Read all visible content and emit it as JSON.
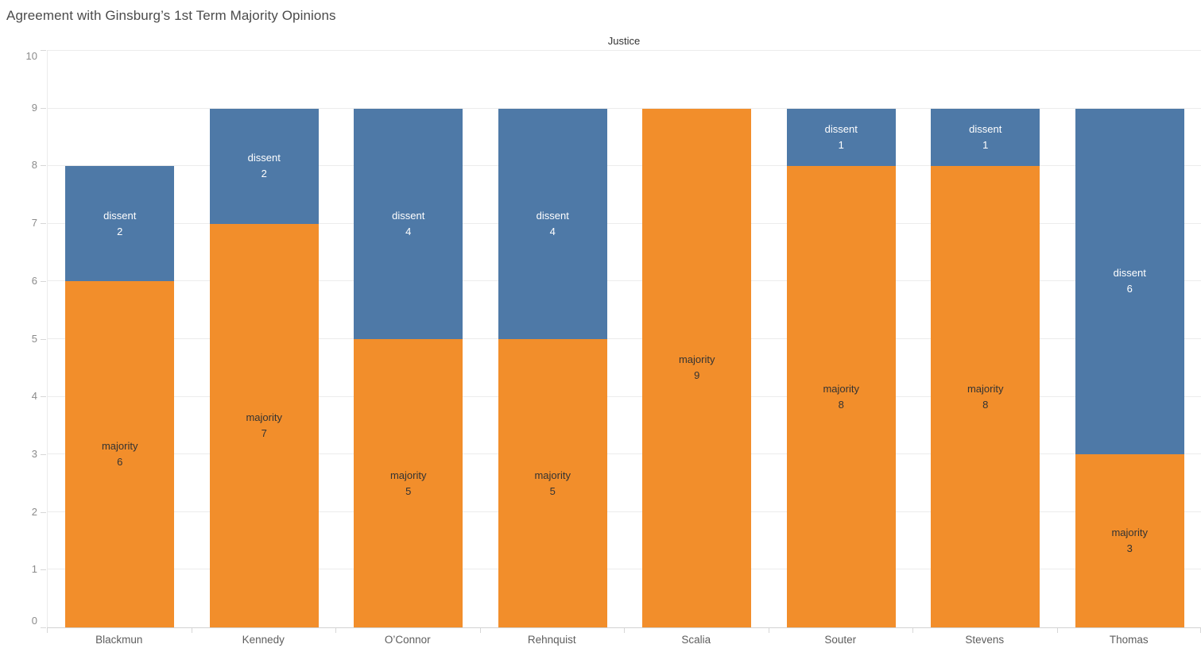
{
  "chart_data": {
    "type": "bar",
    "stacked": true,
    "title": "Agreement with Ginsburg’s 1st Term Majority Opinions",
    "column_field_label": "Justice",
    "categories": [
      "Blackmun",
      "Kennedy",
      "O’Connor",
      "Rehnquist",
      "Scalia",
      "Souter",
      "Stevens",
      "Thomas"
    ],
    "series": [
      {
        "name": "majority",
        "color": "#f28e2b",
        "label_color": "#333333",
        "values": [
          6,
          7,
          5,
          5,
          9,
          8,
          8,
          3
        ]
      },
      {
        "name": "dissent",
        "color": "#4e79a7",
        "label_color": "#ffffff",
        "values": [
          2,
          2,
          4,
          4,
          0,
          1,
          1,
          6
        ]
      }
    ],
    "ylim": [
      0,
      10
    ],
    "yticks": [
      0,
      1,
      2,
      3,
      4,
      5,
      6,
      7,
      8,
      9,
      10
    ],
    "grid": true,
    "legend": "none",
    "background": "#ffffff",
    "gridline_color": "#ececec",
    "axis_line_color": "#d2d2d2"
  }
}
